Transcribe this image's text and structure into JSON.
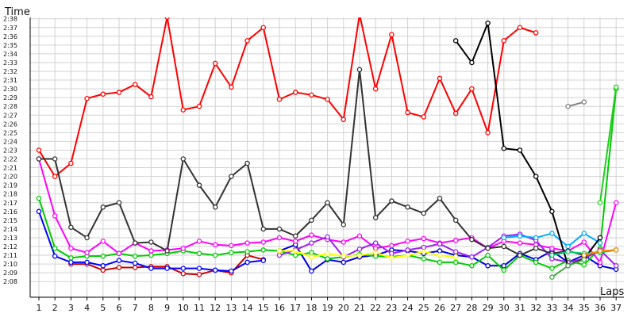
{
  "chart_data": {
    "type": "line",
    "ylabel": "Time",
    "xlabel": "Laps",
    "x_ticks": [
      "1",
      "2",
      "3",
      "4",
      "5",
      "6",
      "7",
      "8",
      "9",
      "10",
      "11",
      "12",
      "13",
      "14",
      "15",
      "16",
      "17",
      "18",
      "19",
      "20",
      "21",
      "22",
      "23",
      "24",
      "25",
      "26",
      "27",
      "28",
      "29",
      "30",
      "31",
      "32",
      "33",
      "34",
      "35",
      "36",
      "37"
    ],
    "y_tick_labels": [
      "2:08",
      "2:09",
      "2:10",
      "2:11",
      "2:12",
      "2:13",
      "2:14",
      "2:15",
      "2:16",
      "2:17",
      "2:18",
      "2:19",
      "2:20",
      "2:21",
      "2:22",
      "2:23",
      "2:24",
      "2:25",
      "2:26",
      "2:27",
      "2:28",
      "2:29",
      "2:30",
      "2:31",
      "2:32",
      "2:33",
      "2:34",
      "2:35",
      "2:36",
      "2:37",
      "2:38"
    ],
    "y_range_seconds": [
      127.2,
      141.0
    ],
    "grid": true,
    "legend": "none",
    "series": [
      {
        "color": "#ff0000",
        "values": [
          143,
          140,
          141.5,
          148.9,
          149.4,
          149.6,
          150.5,
          149.1,
          158.2,
          147.6,
          148.0,
          152.9,
          150.2,
          155.5,
          157.0,
          148.8,
          149.6,
          149.3,
          148.8,
          146.5,
          158.5,
          150.0,
          156.2,
          147.3,
          146.8,
          151.2,
          147.2,
          150.0,
          145.0,
          155.5,
          157.0,
          156.4,
          null,
          null,
          null,
          null,
          null
        ]
      },
      {
        "color": "#cc0000",
        "values": [
          null,
          null,
          130.0,
          130.0,
          129.3,
          129.6,
          129.6,
          129.7,
          129.7,
          128.9,
          128.8,
          129.3,
          129.0,
          131.0,
          130.5,
          null,
          null,
          null,
          null,
          null,
          null,
          null,
          null,
          null,
          null,
          null,
          null,
          null,
          null,
          null,
          null,
          null,
          null,
          null,
          null,
          null,
          null
        ]
      },
      {
        "color": "#0000ff",
        "values": [
          136.0,
          130.9,
          130.2,
          130.2,
          129.8,
          130.4,
          130.1,
          129.5,
          129.5,
          129.5,
          129.5,
          129.3,
          129.2,
          130.2,
          130.4,
          null,
          null,
          null,
          null,
          null,
          null,
          null,
          null,
          null,
          null,
          null,
          null,
          null,
          null,
          null,
          null,
          null,
          null,
          null,
          null,
          null,
          null
        ]
      },
      {
        "color": "#0000dd",
        "values": [
          null,
          null,
          null,
          null,
          null,
          null,
          null,
          null,
          null,
          null,
          null,
          null,
          null,
          null,
          null,
          131.5,
          132.2,
          129.2,
          130.5,
          130.2,
          130.8,
          131.0,
          131.6,
          131.5,
          131.2,
          131.5,
          131.0,
          130.8,
          129.8,
          129.8,
          131.2,
          130.5,
          131.5,
          130.2,
          131.0,
          129.8,
          129.4
        ]
      },
      {
        "color": "#00cc00",
        "values": [
          137.5,
          131.8,
          130.7,
          130.9,
          130.9,
          131.2,
          130.9,
          131.0,
          131.2,
          131.5,
          131.2,
          131.0,
          131.3,
          131.4,
          131.6,
          131.5,
          131.0,
          131.3,
          130.6,
          130.8,
          131.1,
          130.9,
          130.8,
          131.0,
          130.6,
          130.2,
          130.2,
          129.8,
          131.0,
          129.3,
          131.0,
          130.2,
          129.5,
          130.4,
          129.9,
          131.8,
          150.0
        ]
      },
      {
        "color": "#ff00ff",
        "values": [
          142.0,
          135.5,
          131.8,
          131.3,
          132.6,
          131.2,
          132.4,
          131.5,
          131.6,
          131.8,
          132.6,
          132.2,
          132.1,
          132.4,
          132.5,
          133.0,
          132.6,
          133.3,
          132.8,
          132.5,
          133.2,
          131.8,
          132.1,
          132.6,
          132.9,
          132.4,
          132.7,
          133.0,
          131.8,
          132.6,
          132.4,
          132.2,
          131.8,
          131.5,
          132.5,
          130.2,
          137.0
        ]
      },
      {
        "color": "#a020f0",
        "values": [
          null,
          null,
          null,
          null,
          null,
          null,
          null,
          null,
          null,
          null,
          null,
          null,
          null,
          null,
          null,
          131.0,
          131.6,
          132.4,
          133.1,
          130.8,
          131.7,
          132.4,
          131.2,
          131.6,
          131.9,
          132.3,
          131.4,
          130.8,
          131.9,
          133.2,
          133.4,
          132.7,
          130.6,
          130.2,
          130.6,
          131.6,
          129.8
        ]
      },
      {
        "color": "#00aaff",
        "values": [
          null,
          null,
          null,
          null,
          null,
          null,
          null,
          null,
          null,
          null,
          null,
          null,
          null,
          null,
          null,
          null,
          null,
          null,
          null,
          null,
          null,
          null,
          null,
          null,
          null,
          null,
          null,
          null,
          null,
          133.0,
          133.2,
          133.0,
          133.5,
          132.0,
          133.5,
          132.4,
          null
        ]
      },
      {
        "color": "#ffff00",
        "values": [
          null,
          null,
          null,
          null,
          null,
          null,
          null,
          null,
          null,
          null,
          null,
          null,
          null,
          null,
          null,
          131.5,
          131.5,
          130.8,
          131.2,
          130.9,
          131.0,
          131.3,
          130.7,
          131.0,
          131.4,
          131.0,
          130.8,
          null,
          null,
          null,
          null,
          null,
          null,
          null,
          null,
          null,
          null
        ]
      },
      {
        "color": "#000000",
        "values": [
          null,
          null,
          null,
          null,
          null,
          null,
          null,
          null,
          null,
          null,
          null,
          null,
          null,
          null,
          null,
          null,
          null,
          null,
          null,
          null,
          null,
          null,
          null,
          null,
          null,
          null,
          155.5,
          153.0,
          157.5,
          143.2,
          143.0,
          140.0,
          136.0,
          129.8,
          130.6,
          133.0,
          null
        ]
      },
      {
        "color": "#333333",
        "values": [
          142.0,
          142.0,
          134.2,
          133.0,
          136.5,
          137.0,
          132.4,
          132.5,
          131.5,
          142.0,
          139.0,
          136.5,
          140.0,
          141.5,
          134.0,
          134.0,
          133.2,
          135.0,
          137.0,
          134.5,
          152.2,
          135.3,
          137.2,
          136.5,
          135.8,
          137.5,
          135.0,
          132.8,
          131.8,
          132.0,
          131.0,
          131.8,
          131.2,
          131.5,
          131.0,
          131.4,
          null
        ]
      },
      {
        "color": "#808080",
        "values": [
          null,
          null,
          null,
          null,
          null,
          null,
          null,
          null,
          null,
          null,
          null,
          null,
          null,
          null,
          null,
          null,
          null,
          null,
          null,
          null,
          null,
          null,
          null,
          null,
          null,
          null,
          null,
          null,
          null,
          null,
          null,
          null,
          null,
          148.0,
          148.5,
          null,
          null
        ]
      },
      {
        "color": "#00cc66",
        "values": [
          null,
          null,
          null,
          null,
          null,
          null,
          null,
          null,
          null,
          null,
          null,
          null,
          null,
          null,
          null,
          null,
          null,
          null,
          null,
          null,
          null,
          null,
          null,
          null,
          null,
          null,
          null,
          null,
          null,
          null,
          null,
          null,
          131.0,
          131.4,
          131.2,
          131.3,
          131.6
        ]
      },
      {
        "color": "#22cc22",
        "values": [
          null,
          null,
          null,
          null,
          null,
          null,
          null,
          null,
          null,
          null,
          null,
          null,
          null,
          null,
          null,
          null,
          null,
          null,
          null,
          null,
          null,
          null,
          null,
          null,
          null,
          null,
          null,
          null,
          null,
          null,
          null,
          null,
          null,
          null,
          null,
          137.0,
          150.2
        ]
      },
      {
        "color": "#44aa44",
        "values": [
          null,
          null,
          null,
          null,
          null,
          null,
          null,
          null,
          null,
          null,
          null,
          null,
          null,
          null,
          null,
          null,
          null,
          null,
          null,
          null,
          null,
          null,
          null,
          null,
          null,
          null,
          null,
          null,
          null,
          null,
          null,
          null,
          128.5,
          129.8,
          130.5,
          null,
          null
        ]
      },
      {
        "color": "#ff8800",
        "values": [
          null,
          null,
          null,
          null,
          null,
          null,
          null,
          null,
          null,
          null,
          null,
          null,
          null,
          null,
          null,
          null,
          null,
          null,
          null,
          null,
          null,
          null,
          null,
          null,
          null,
          null,
          null,
          null,
          null,
          null,
          null,
          null,
          null,
          null,
          131.0,
          131.5,
          131.6
        ]
      }
    ]
  }
}
